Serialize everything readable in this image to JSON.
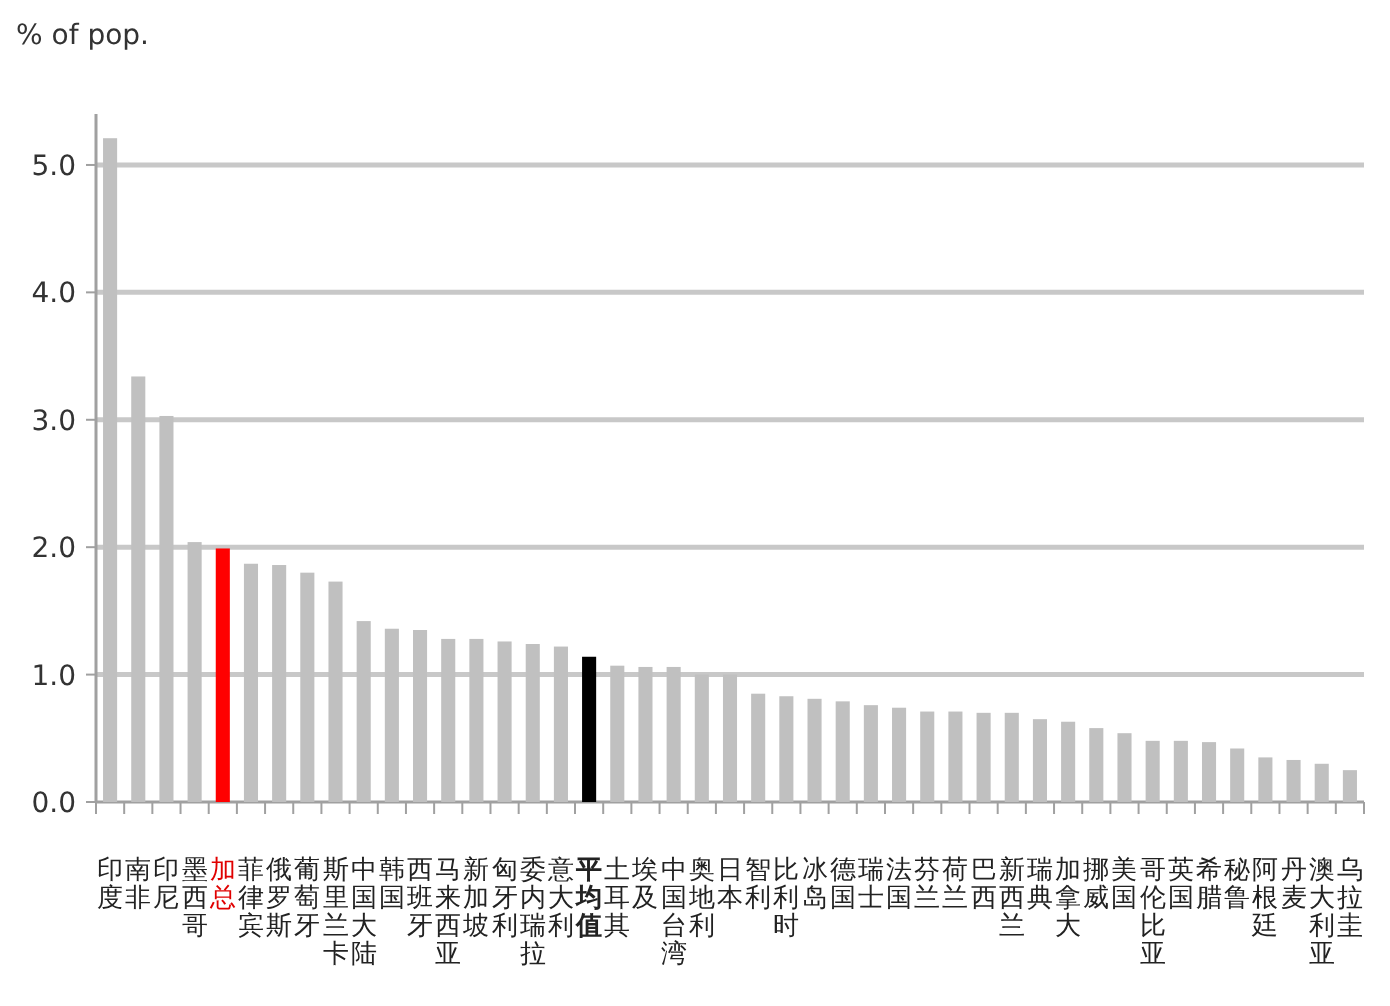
{
  "chart_data": {
    "type": "bar",
    "ylabel": "% of pop.",
    "categories": [
      "印度",
      "南非",
      "印尼",
      "墨西哥",
      "加总",
      "菲律宾",
      "俄罗斯",
      "葡萄牙",
      "斯里兰卡",
      "中国大陆",
      "韩国",
      "西班牙",
      "马来西亚",
      "新加坡",
      "匈牙利",
      "委内瑞拉",
      "意大利",
      "平均值",
      "土耳其",
      "埃及",
      "中国台湾",
      "奥地利",
      "日本",
      "智利",
      "比利时",
      "冰岛",
      "德国",
      "瑞士",
      "法国",
      "芬兰",
      "荷兰",
      "巴西",
      "新西兰",
      "瑞典",
      "加拿大",
      "挪威",
      "美国",
      "哥伦比亚",
      "英国",
      "希腊",
      "秘鲁",
      "阿根廷",
      "丹麦",
      "澳大利亚",
      "乌拉圭"
    ],
    "values": [
      5.21,
      3.34,
      3.03,
      2.04,
      1.99,
      1.87,
      1.86,
      1.8,
      1.73,
      1.42,
      1.36,
      1.35,
      1.28,
      1.28,
      1.26,
      1.24,
      1.22,
      1.14,
      1.07,
      1.06,
      1.06,
      1.0,
      1.0,
      0.85,
      0.83,
      0.81,
      0.79,
      0.76,
      0.74,
      0.71,
      0.71,
      0.7,
      0.7,
      0.65,
      0.63,
      0.58,
      0.54,
      0.48,
      0.48,
      0.47,
      0.42,
      0.35,
      0.33,
      0.3,
      0.25
    ],
    "colors": [
      "#c0c0c0",
      "#c0c0c0",
      "#c0c0c0",
      "#c0c0c0",
      "#ff0000",
      "#c0c0c0",
      "#c0c0c0",
      "#c0c0c0",
      "#c0c0c0",
      "#c0c0c0",
      "#c0c0c0",
      "#c0c0c0",
      "#c0c0c0",
      "#c0c0c0",
      "#c0c0c0",
      "#c0c0c0",
      "#c0c0c0",
      "#000000",
      "#c0c0c0",
      "#c0c0c0",
      "#c0c0c0",
      "#c0c0c0",
      "#c0c0c0",
      "#c0c0c0",
      "#c0c0c0",
      "#c0c0c0",
      "#c0c0c0",
      "#c0c0c0",
      "#c0c0c0",
      "#c0c0c0",
      "#c0c0c0",
      "#c0c0c0",
      "#c0c0c0",
      "#c0c0c0",
      "#c0c0c0",
      "#c0c0c0",
      "#c0c0c0",
      "#c0c0c0",
      "#c0c0c0",
      "#c0c0c0",
      "#c0c0c0",
      "#c0c0c0",
      "#c0c0c0",
      "#c0c0c0",
      "#c0c0c0"
    ],
    "ylim": [
      0,
      5.4
    ],
    "yticks": [
      {
        "value": 0,
        "label": "0.0"
      },
      {
        "value": 1,
        "label": "1.0"
      },
      {
        "value": 2,
        "label": "2.0"
      },
      {
        "value": 3,
        "label": "3.0"
      },
      {
        "value": 4,
        "label": "4.0"
      },
      {
        "value": 5,
        "label": "5.0"
      }
    ],
    "grid": "y"
  }
}
